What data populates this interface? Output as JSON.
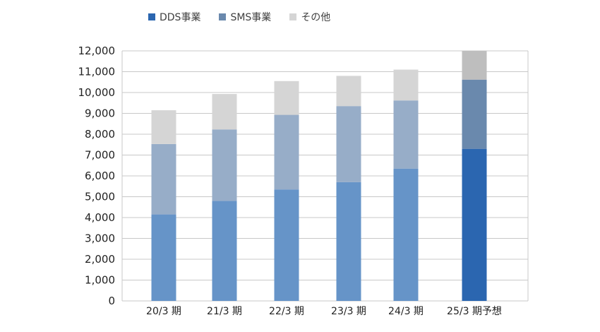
{
  "chart_data": {
    "type": "bar",
    "stacked": true,
    "categories": [
      "20/3 期",
      "21/3 期",
      "22/3 期",
      "23/3 期",
      "24/3 期",
      "25/3 期予想"
    ],
    "series": [
      {
        "name": "DDS事業",
        "values": [
          4150,
          4800,
          5350,
          5700,
          6350,
          7300
        ]
      },
      {
        "name": "SMS事業",
        "values": [
          3380,
          3430,
          3580,
          3650,
          3270,
          3320
        ]
      },
      {
        "name": "その他",
        "values": [
          1620,
          1700,
          1620,
          1450,
          1480,
          1380
        ]
      }
    ],
    "ylim": [
      0,
      12000
    ],
    "yticks": [
      "0",
      "1,000",
      "2,000",
      "3,000",
      "4,000",
      "5,000",
      "6,000",
      "7,000",
      "8,000",
      "9,000",
      "10,000",
      "11,000",
      "12,000"
    ],
    "ytick_values": [
      0,
      1000,
      2000,
      3000,
      4000,
      5000,
      6000,
      7000,
      8000,
      9000,
      10000,
      11000,
      12000
    ],
    "grid": true,
    "legend_position": "top",
    "colors": {
      "actual": [
        "#6694c8",
        "#97adc8",
        "#d5d5d5"
      ],
      "forecast": [
        "#2b66b0",
        "#6a89ad",
        "#bebebe"
      ],
      "legend": [
        "#2b66b0",
        "#6a89ad",
        "#d5d5d5"
      ]
    }
  }
}
